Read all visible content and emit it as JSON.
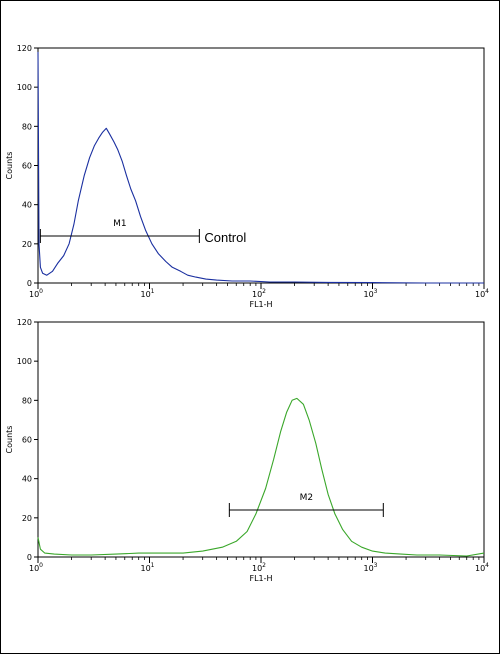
{
  "chart_data": [
    {
      "type": "line",
      "xlabel": "FL1-H",
      "ylabel": "Counts",
      "x_scale": "log",
      "xlim": [
        1,
        10000
      ],
      "ylim": [
        0,
        120
      ],
      "x_ticks": [
        {
          "value": 1,
          "base": "10",
          "exp": "0"
        },
        {
          "value": 10,
          "base": "10",
          "exp": "1"
        },
        {
          "value": 100,
          "base": "10",
          "exp": "2"
        },
        {
          "value": 1000,
          "base": "10",
          "exp": "3"
        },
        {
          "value": 10000,
          "base": "10",
          "exp": "4"
        }
      ],
      "y_ticks": [
        "0",
        "20",
        "40",
        "60",
        "80",
        "100",
        "120"
      ],
      "grid": false,
      "series_color": "#1a2fa0",
      "series": [
        {
          "x": [
            1.0,
            1.02,
            1.05,
            1.1,
            1.2,
            1.35,
            1.5,
            1.7,
            1.9,
            2.1,
            2.3,
            2.6,
            2.9,
            3.2,
            3.5,
            3.8,
            4.1,
            4.4,
            4.8,
            5.2,
            5.7,
            6.2,
            6.8,
            7.5,
            8.3,
            9.2,
            10.5,
            12,
            14,
            16,
            19,
            22,
            26,
            32,
            40,
            55,
            80,
            120,
            200,
            400,
            1000,
            3000,
            10000
          ],
          "y": [
            118,
            20,
            8,
            5,
            4,
            6,
            10,
            14,
            20,
            30,
            42,
            55,
            64,
            70,
            74,
            77,
            79,
            76,
            72,
            68,
            62,
            55,
            48,
            42,
            34,
            27,
            20,
            15,
            11,
            8,
            6,
            4,
            3,
            2,
            1.5,
            1,
            1,
            0.5,
            0.5,
            0.3,
            0.2,
            0,
            0
          ]
        }
      ],
      "marker": {
        "label": "M1",
        "x_start": 1.05,
        "x_end": 28,
        "y": 24
      },
      "annotation": "Control"
    },
    {
      "type": "line",
      "xlabel": "FL1-H",
      "ylabel": "Counts",
      "x_scale": "log",
      "xlim": [
        1,
        10000
      ],
      "ylim": [
        0,
        120
      ],
      "x_ticks": [
        {
          "value": 1,
          "base": "10",
          "exp": "0"
        },
        {
          "value": 10,
          "base": "10",
          "exp": "1"
        },
        {
          "value": 100,
          "base": "10",
          "exp": "2"
        },
        {
          "value": 1000,
          "base": "10",
          "exp": "3"
        },
        {
          "value": 10000,
          "base": "10",
          "exp": "4"
        }
      ],
      "y_ticks": [
        "0",
        "20",
        "40",
        "60",
        "80",
        "100",
        "120"
      ],
      "grid": false,
      "series_color": "#3aa72a",
      "series": [
        {
          "x": [
            1.0,
            1.05,
            1.15,
            1.4,
            2,
            3,
            5,
            8,
            12,
            20,
            30,
            45,
            60,
            75,
            90,
            110,
            130,
            150,
            170,
            190,
            210,
            240,
            270,
            310,
            350,
            400,
            460,
            540,
            650,
            800,
            1000,
            1300,
            1800,
            2500,
            4000,
            7000,
            10000
          ],
          "y": [
            10,
            4,
            2,
            1.5,
            1,
            1,
            1.5,
            2,
            2,
            2,
            3,
            5,
            8,
            13,
            22,
            35,
            50,
            64,
            74,
            80,
            81,
            78,
            70,
            58,
            45,
            32,
            22,
            14,
            8,
            5,
            3,
            2,
            1.5,
            1,
            1,
            0.5,
            2
          ]
        }
      ],
      "marker": {
        "label": "M2",
        "x_start": 52,
        "x_end": 1250,
        "y": 24
      }
    }
  ]
}
